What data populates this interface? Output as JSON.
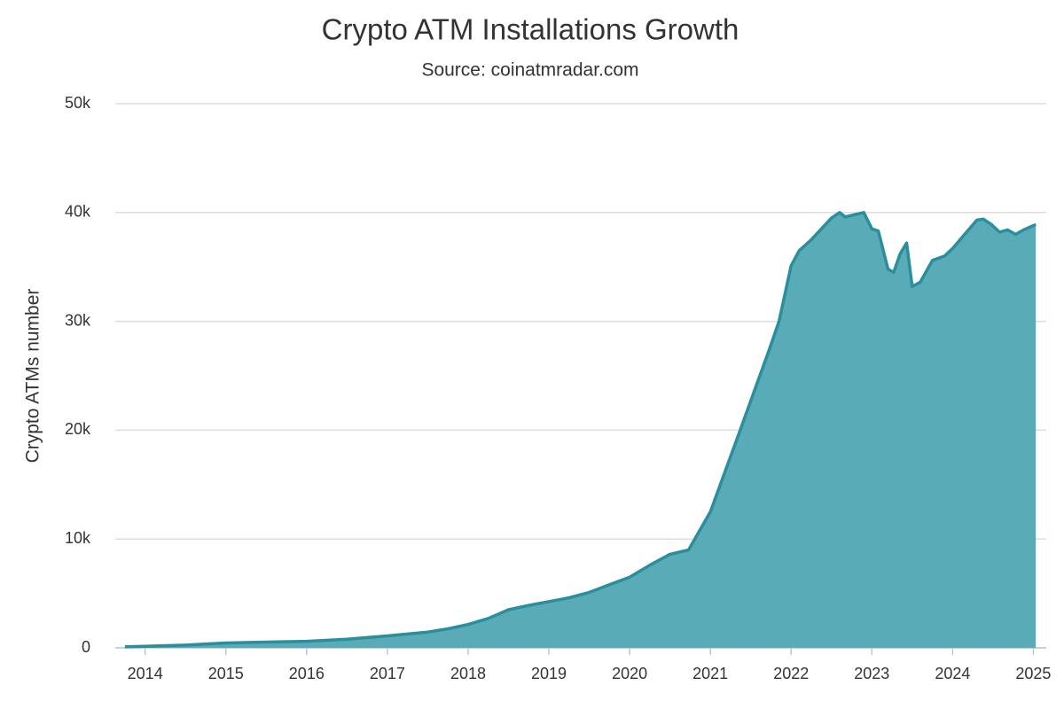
{
  "chart_data": {
    "type": "area",
    "title": "Crypto ATM Installations Growth",
    "subtitle": "Source: coinatmradar.com",
    "y_label": "Crypto ATMs number",
    "x": [
      2013.75,
      2014.0,
      2014.5,
      2015.0,
      2015.5,
      2016.0,
      2016.5,
      2017.0,
      2017.5,
      2017.75,
      2018.0,
      2018.25,
      2018.5,
      2018.75,
      2019.0,
      2019.25,
      2019.5,
      2019.75,
      2020.0,
      2020.25,
      2020.5,
      2020.73,
      2021.0,
      2021.35,
      2021.73,
      2021.85,
      2022.0,
      2022.1,
      2022.25,
      2022.5,
      2022.6,
      2022.67,
      2022.9,
      2023.0,
      2023.08,
      2023.2,
      2023.27,
      2023.35,
      2023.43,
      2023.5,
      2023.6,
      2023.75,
      2023.9,
      2024.0,
      2024.15,
      2024.3,
      2024.38,
      2024.48,
      2024.58,
      2024.68,
      2024.78,
      2024.88,
      2025.03
    ],
    "series": [
      {
        "name": "Crypto ATMs",
        "color": "#2a8f9c",
        "fill": "#5aabb8",
        "values": [
          100,
          150,
          250,
          450,
          530,
          600,
          800,
          1100,
          1450,
          1750,
          2150,
          2700,
          3500,
          3900,
          4250,
          4600,
          5100,
          5800,
          6500,
          7600,
          8600,
          9000,
          12500,
          19600,
          27400,
          30000,
          35100,
          36500,
          37500,
          39500,
          40000,
          39600,
          40000,
          38500,
          38300,
          34800,
          34500,
          36200,
          37200,
          33200,
          33600,
          35600,
          36000,
          36700,
          38000,
          39300,
          39400,
          38900,
          38200,
          38400,
          38000,
          38400,
          38900
        ]
      }
    ],
    "xlim": [
      2013.63,
      2025.16
    ],
    "xticks": [
      2014,
      2015,
      2016,
      2017,
      2018,
      2019,
      2020,
      2021,
      2022,
      2023,
      2024,
      2025
    ],
    "ylim": [
      0,
      50000
    ],
    "yticks": [
      0,
      {
        "value": 10000,
        "label": "10k"
      },
      {
        "value": 20000,
        "label": "20k"
      },
      {
        "value": 30000,
        "label": "30k"
      },
      {
        "value": 40000,
        "label": "40k"
      },
      {
        "value": 50000,
        "label": "50k"
      }
    ],
    "grid": true
  }
}
